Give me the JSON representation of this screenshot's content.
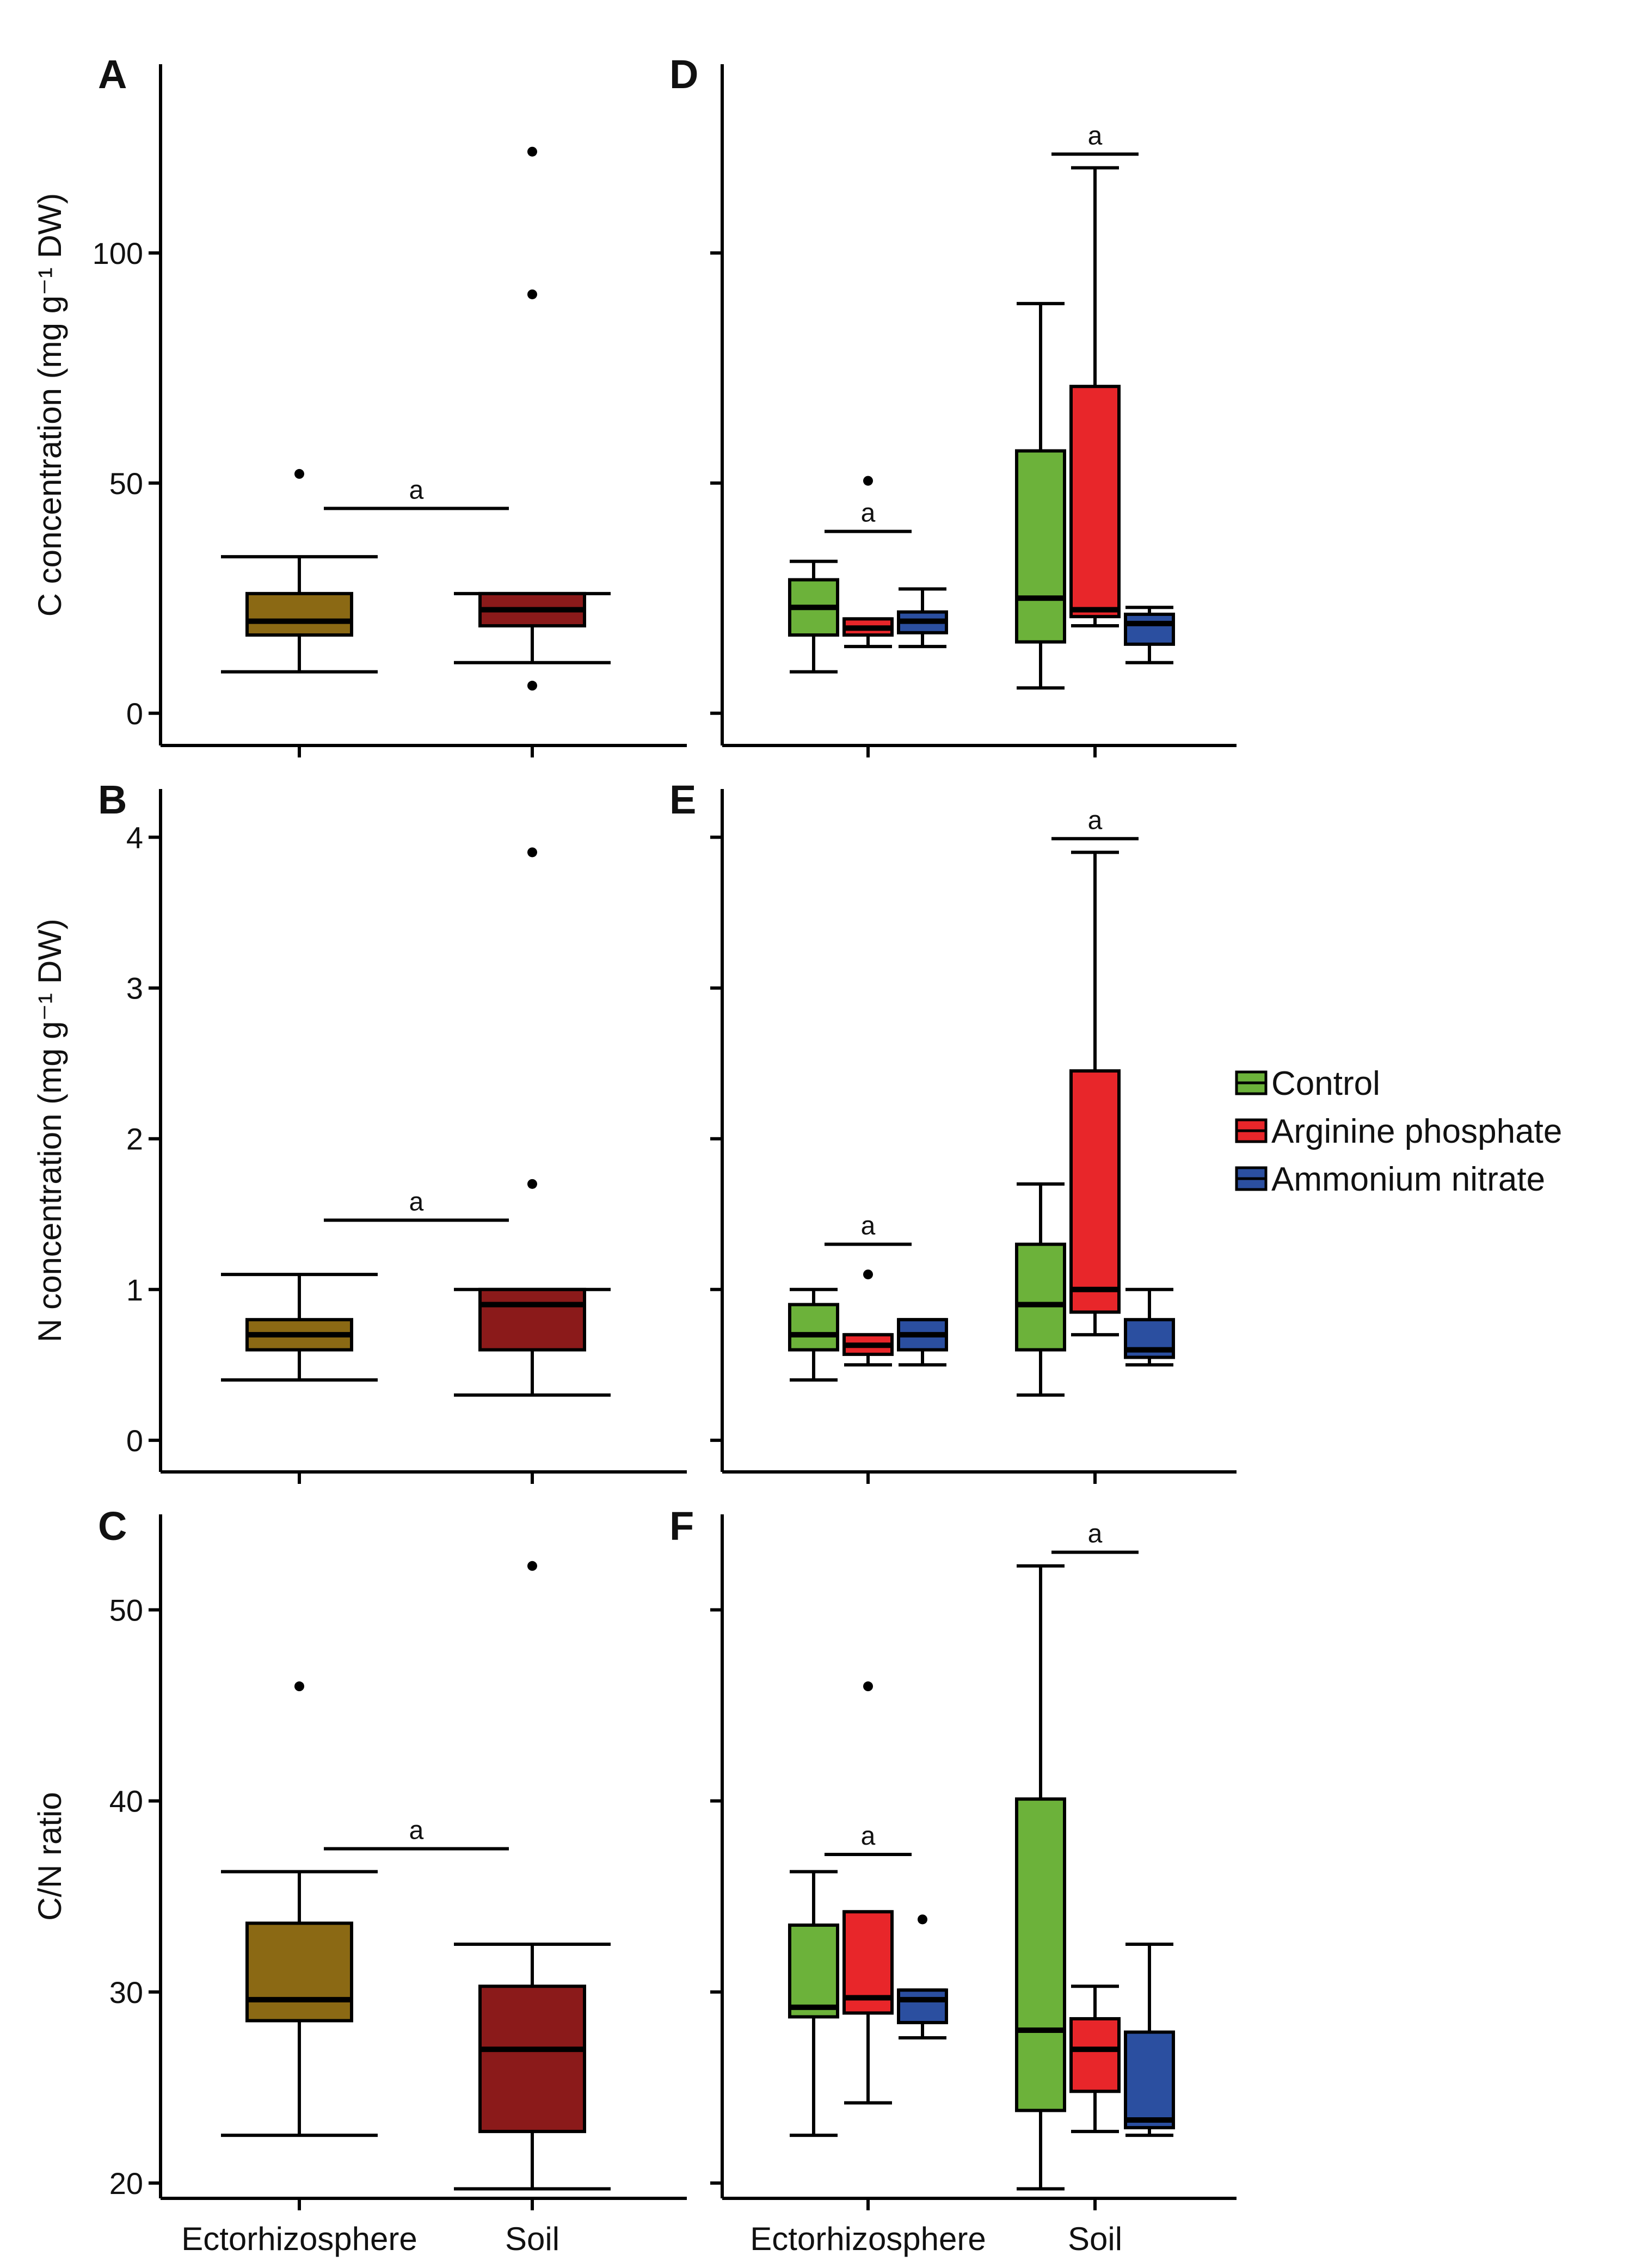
{
  "chart_data": [
    {
      "panel": "A",
      "type": "box",
      "ylabel": "C concentration (mg g⁻¹ DW)",
      "ylim": [
        -7,
        141
      ],
      "yticks": [
        0,
        50,
        100
      ],
      "categories": [
        "Ectorhizosphere",
        "Soil"
      ],
      "significance": "a",
      "boxes": [
        {
          "category": "Ectorhizosphere",
          "group": "Ectorhizosphere",
          "color": "#8b6914",
          "min": 9,
          "q1": 17,
          "median": 20,
          "q3": 26,
          "max": 34,
          "outliers": [
            52
          ]
        },
        {
          "category": "Soil",
          "group": "Soil",
          "color": "#8b1a1a",
          "min": 11,
          "q1": 19,
          "median": 22.5,
          "q3": 26,
          "max": 26,
          "outliers": [
            6,
            91,
            122
          ]
        }
      ]
    },
    {
      "panel": "B",
      "type": "box",
      "ylabel": "N concentration (mg g⁻¹ DW)",
      "ylim": [
        -0.21,
        4.32
      ],
      "yticks": [
        0,
        1,
        2,
        3,
        4
      ],
      "categories": [
        "Ectorhizosphere",
        "Soil"
      ],
      "significance": "a",
      "boxes": [
        {
          "category": "Ectorhizosphere",
          "group": "Ectorhizosphere",
          "color": "#8b6914",
          "min": 0.4,
          "q1": 0.6,
          "median": 0.7,
          "q3": 0.8,
          "max": 1.1,
          "outliers": []
        },
        {
          "category": "Soil",
          "group": "Soil",
          "color": "#8b1a1a",
          "min": 0.3,
          "q1": 0.6,
          "median": 0.9,
          "q3": 1.0,
          "max": 1.0,
          "outliers": [
            1.7,
            3.9
          ]
        }
      ]
    },
    {
      "panel": "C",
      "type": "box",
      "ylabel": "C/N ratio",
      "ylim": [
        19.2,
        55
      ],
      "yticks": [
        20,
        30,
        40,
        50
      ],
      "categories": [
        "Ectorhizosphere",
        "Soil"
      ],
      "significance": "a",
      "boxes": [
        {
          "category": "Ectorhizosphere",
          "group": "Ectorhizosphere",
          "color": "#8b6914",
          "min": 22.5,
          "q1": 28.5,
          "median": 29.6,
          "q3": 33.6,
          "max": 36.3,
          "outliers": [
            46
          ]
        },
        {
          "category": "Soil",
          "group": "Soil",
          "color": "#8b1a1a",
          "min": 19.7,
          "q1": 22.7,
          "median": 27,
          "q3": 30.3,
          "max": 32.5,
          "outliers": [
            52.3
          ]
        }
      ]
    },
    {
      "panel": "D",
      "type": "box",
      "ylim": [
        -7,
        141
      ],
      "yticks": [
        0,
        50,
        100
      ],
      "categories": [
        "Ectorhizosphere",
        "Soil"
      ],
      "significance": [
        "a",
        "a"
      ],
      "boxes": [
        {
          "category": "Ectorhizosphere",
          "group": "Control",
          "color": "#6cb23a",
          "min": 9,
          "q1": 17,
          "median": 23,
          "q3": 29,
          "max": 33,
          "outliers": []
        },
        {
          "category": "Ectorhizosphere",
          "group": "Arginine phosphate",
          "color": "#e8262a",
          "min": 14.5,
          "q1": 17,
          "median": 18.5,
          "q3": 20.5,
          "max": 20.5,
          "outliers": [
            50.5
          ]
        },
        {
          "category": "Ectorhizosphere",
          "group": "Ammonium nitrate",
          "color": "#2b4fa0",
          "min": 14.5,
          "q1": 17.5,
          "median": 20,
          "q3": 22,
          "max": 27,
          "outliers": []
        },
        {
          "category": "Soil",
          "group": "Control",
          "color": "#6cb23a",
          "min": 5.5,
          "q1": 15.5,
          "median": 25,
          "q3": 57,
          "max": 89,
          "outliers": []
        },
        {
          "category": "Soil",
          "group": "Arginine phosphate",
          "color": "#e8262a",
          "min": 19,
          "q1": 21,
          "median": 22.5,
          "q3": 71,
          "max": 118.5,
          "outliers": []
        },
        {
          "category": "Soil",
          "group": "Ammonium nitrate",
          "color": "#2b4fa0",
          "min": 11,
          "q1": 15,
          "median": 19.5,
          "q3": 21.5,
          "max": 23,
          "outliers": []
        }
      ]
    },
    {
      "panel": "E",
      "type": "box",
      "ylim": [
        -0.21,
        4.32
      ],
      "yticks": [
        0,
        1,
        2,
        3,
        4
      ],
      "categories": [
        "Ectorhizosphere",
        "Soil"
      ],
      "significance": [
        "a",
        "a"
      ],
      "boxes": [
        {
          "category": "Ectorhizosphere",
          "group": "Control",
          "color": "#6cb23a",
          "min": 0.4,
          "q1": 0.6,
          "median": 0.7,
          "q3": 0.9,
          "max": 1.0,
          "outliers": []
        },
        {
          "category": "Ectorhizosphere",
          "group": "Arginine phosphate",
          "color": "#e8262a",
          "min": 0.5,
          "q1": 0.57,
          "median": 0.63,
          "q3": 0.7,
          "max": 0.7,
          "outliers": [
            1.1
          ]
        },
        {
          "category": "Ectorhizosphere",
          "group": "Ammonium nitrate",
          "color": "#2b4fa0",
          "min": 0.5,
          "q1": 0.6,
          "median": 0.7,
          "q3": 0.8,
          "max": 0.8,
          "outliers": []
        },
        {
          "category": "Soil",
          "group": "Control",
          "color": "#6cb23a",
          "min": 0.3,
          "q1": 0.6,
          "median": 0.9,
          "q3": 1.3,
          "max": 1.7,
          "outliers": []
        },
        {
          "category": "Soil",
          "group": "Arginine phosphate",
          "color": "#e8262a",
          "min": 0.7,
          "q1": 0.85,
          "median": 1.0,
          "q3": 2.45,
          "max": 3.9,
          "outliers": []
        },
        {
          "category": "Soil",
          "group": "Ammonium nitrate",
          "color": "#2b4fa0",
          "min": 0.5,
          "q1": 0.55,
          "median": 0.6,
          "q3": 0.8,
          "max": 1.0,
          "outliers": []
        }
      ]
    },
    {
      "panel": "F",
      "type": "box",
      "ylim": [
        19.2,
        55
      ],
      "yticks": [
        20,
        30,
        40,
        50
      ],
      "categories": [
        "Ectorhizosphere",
        "Soil"
      ],
      "significance": [
        "a",
        "a"
      ],
      "boxes": [
        {
          "category": "Ectorhizosphere",
          "group": "Control",
          "color": "#6cb23a",
          "min": 22.5,
          "q1": 28.7,
          "median": 29.2,
          "q3": 33.5,
          "max": 36.3,
          "outliers": []
        },
        {
          "category": "Ectorhizosphere",
          "group": "Arginine phosphate",
          "color": "#e8262a",
          "min": 24.2,
          "q1": 28.9,
          "median": 29.7,
          "q3": 34.2,
          "max": 34.2,
          "outliers": [
            46
          ]
        },
        {
          "category": "Ectorhizosphere",
          "group": "Ammonium nitrate",
          "color": "#2b4fa0",
          "min": 27.6,
          "q1": 28.4,
          "median": 29.6,
          "q3": 30.1,
          "max": 30.1,
          "outliers": [
            33.8
          ]
        },
        {
          "category": "Soil",
          "group": "Control",
          "color": "#6cb23a",
          "min": 19.7,
          "q1": 23.8,
          "median": 28,
          "q3": 40.1,
          "max": 52.3,
          "outliers": []
        },
        {
          "category": "Soil",
          "group": "Arginine phosphate",
          "color": "#e8262a",
          "min": 22.7,
          "q1": 24.8,
          "median": 27,
          "q3": 28.6,
          "max": 30.3,
          "outliers": []
        },
        {
          "category": "Soil",
          "group": "Ammonium nitrate",
          "color": "#2b4fa0",
          "min": 22.5,
          "q1": 22.9,
          "median": 23.3,
          "q3": 27.9,
          "max": 32.5,
          "outliers": []
        }
      ]
    }
  ],
  "legend": {
    "items": [
      {
        "label": "Control",
        "color": "#6cb23a"
      },
      {
        "label": "Arginine phosphate",
        "color": "#e8262a"
      },
      {
        "label": "Ammonium nitrate",
        "color": "#2b4fa0"
      }
    ]
  }
}
